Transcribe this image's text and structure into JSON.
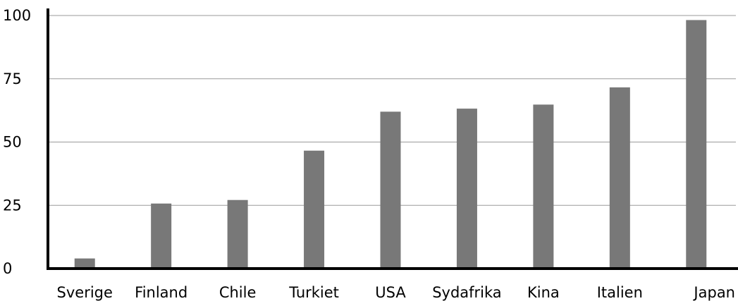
{
  "chart_data": {
    "type": "bar",
    "title": "",
    "xlabel": "",
    "ylabel": "",
    "categories": [
      "Sverige",
      "Finland",
      "Chile",
      "Turkiet",
      "USA",
      "Sydafrika",
      "Kina",
      "Italien",
      "Japan"
    ],
    "values": [
      4,
      25.7,
      27.1,
      46.6,
      62,
      63.2,
      64.8,
      71.6,
      98.2
    ],
    "ylim": [
      0,
      100
    ],
    "yticks": [
      0,
      25,
      50,
      75,
      100
    ],
    "grid": true,
    "legend": "none",
    "bar_color": "#787878",
    "axis_color": "#000000",
    "grid_color": "#9a9a9a"
  }
}
